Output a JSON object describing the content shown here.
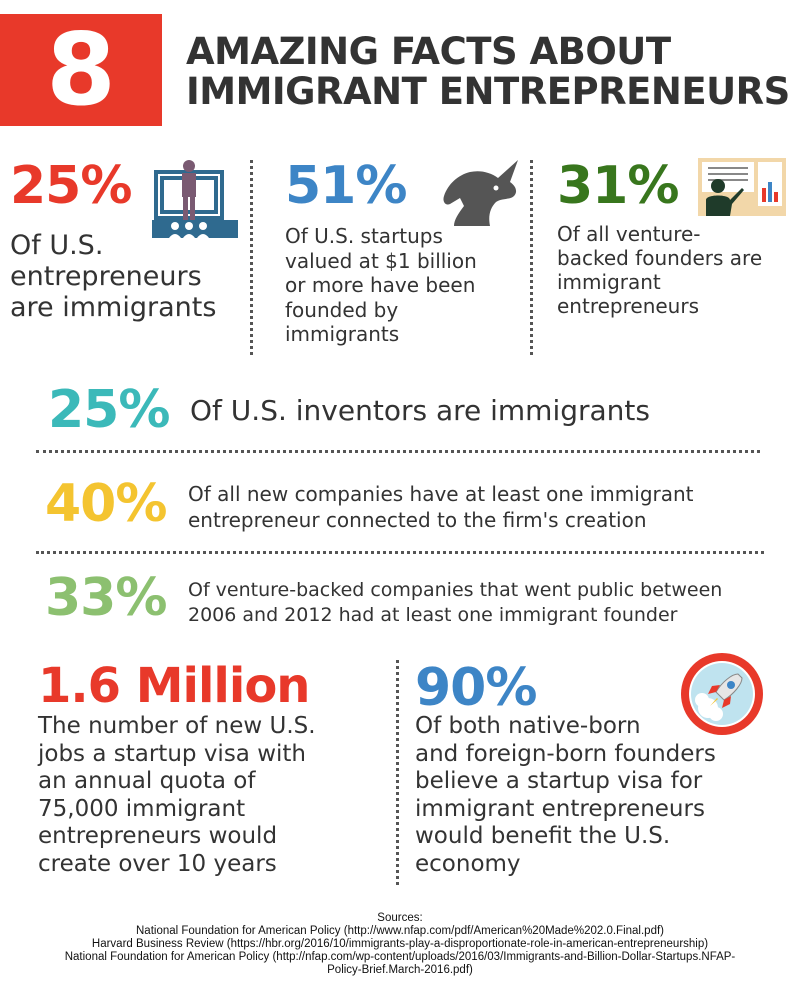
{
  "header": {
    "number": "8",
    "title_line1": "AMAZING FACTS ABOUT",
    "title_line2": "IMMIGRANT ENTREPRENEURS"
  },
  "colors": {
    "red": "#e8392a",
    "blue": "#3d85c6",
    "green": "#38761d",
    "teal": "#3bb9b9",
    "yellow": "#f4c430",
    "light_green": "#8cc070",
    "dark": "#333333"
  },
  "facts_top": [
    {
      "stat": "25%",
      "lines": [
        "Of U.S.",
        "entrepreneurs",
        "are immigrants"
      ],
      "icon": "presenter-icon"
    },
    {
      "stat": "51%",
      "lines": [
        "Of U.S. startups",
        "valued at $1 billion",
        "or more have been",
        "founded by",
        "immigrants"
      ],
      "icon": "unicorn-icon"
    },
    {
      "stat": "31%",
      "lines": [
        "Of all venture-",
        "backed founders are",
        "immigrant",
        "entrepreneurs"
      ],
      "icon": "chart-presentation-icon"
    }
  ],
  "facts_rows": [
    {
      "stat": "25%",
      "lines": [
        "Of U.S. inventors are immigrants"
      ]
    },
    {
      "stat": "40%",
      "lines": [
        "Of all new companies have at least one immigrant",
        "entrepreneur connected to the firm's creation"
      ]
    },
    {
      "stat": "33%",
      "lines": [
        "Of venture-backed companies that went public between",
        "2006 and 2012 had at least one immigrant founder"
      ]
    }
  ],
  "facts_bottom": [
    {
      "stat": "1.6 Million",
      "lines": [
        "The number of new U.S.",
        "jobs a startup visa with",
        "an annual quota of",
        "75,000 immigrant",
        "entrepreneurs would",
        "create over 10 years"
      ]
    },
    {
      "stat": "90%",
      "lines": [
        "Of both native-born",
        "and foreign-born founders",
        "believe a startup visa for",
        "immigrant entrepreneurs",
        "would benefit the U.S.",
        "economy"
      ],
      "icon": "rocket-icon"
    }
  ],
  "sources": {
    "heading": "Sources:",
    "lines": [
      "National Foundation for American Policy (http://www.nfap.com/pdf/American%20Made%202.0.Final.pdf)",
      "Harvard Business Review (https://hbr.org/2016/10/immigrants-play-a-disproportionate-role-in-american-entrepreneurship)",
      "National Foundation for American Policy (http://nfap.com/wp-content/uploads/2016/03/Immigrants-and-Billion-Dollar-Startups.NFAP-",
      "Policy-Brief.March-2016.pdf)"
    ]
  }
}
